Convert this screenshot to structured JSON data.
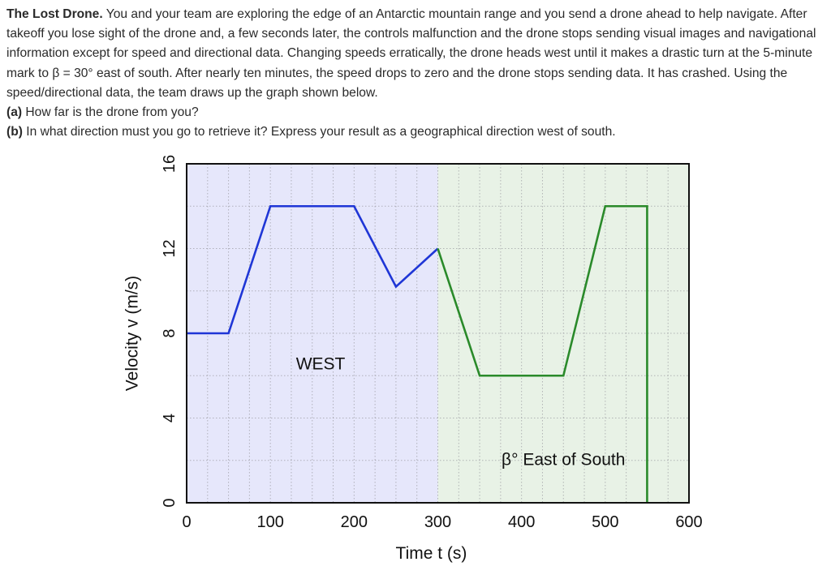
{
  "problem": {
    "title": "The Lost Drone.",
    "body": "You and your team are exploring the edge of an Antarctic mountain range and you send a drone ahead to help navigate. After takeoff you lose sight of the drone and, a few seconds later, the controls malfunction and the drone stops sending visual images and navigational information except for speed and directional data. Changing speeds erratically, the drone heads west until it makes a drastic turn at the 5-minute mark to β = 30° east of south. After nearly ten minutes, the speed drops to zero and the drone stops sending data. It has crashed. Using the speed/directional data, the team draws up the graph shown below.",
    "part_a_label": "(a)",
    "part_a_text": "How far is the drone from you?",
    "part_b_label": "(b)",
    "part_b_text": "In what direction must you go to retrieve it? Express your result as a geographical direction west of south."
  },
  "chart_data": {
    "type": "line",
    "xlabel": "Time t (s)",
    "ylabel": "Velocity v (m/s)",
    "xlim": [
      0,
      600
    ],
    "ylim": [
      0,
      16
    ],
    "x_ticks": [
      0,
      100,
      200,
      300,
      400,
      500,
      600
    ],
    "y_ticks": [
      0,
      4,
      8,
      12,
      16
    ],
    "grid": true,
    "regions": [
      {
        "label": "WEST",
        "x_start": 0,
        "x_end": 300,
        "color": "#e6e7fb"
      },
      {
        "label": "β° East of South",
        "x_start": 300,
        "x_end": 600,
        "color": "#e8f2e6"
      }
    ],
    "series": [
      {
        "color": "#1f36d6",
        "points": [
          [
            0,
            8
          ],
          [
            50,
            8
          ],
          [
            100,
            14
          ],
          [
            200,
            14
          ],
          [
            250,
            10.2
          ],
          [
            300,
            12
          ]
        ]
      },
      {
        "color": "#2a8a2a",
        "points": [
          [
            300,
            12
          ],
          [
            350,
            6
          ],
          [
            450,
            6
          ],
          [
            500,
            14
          ],
          [
            550,
            14
          ],
          [
            550,
            0
          ]
        ]
      }
    ]
  }
}
